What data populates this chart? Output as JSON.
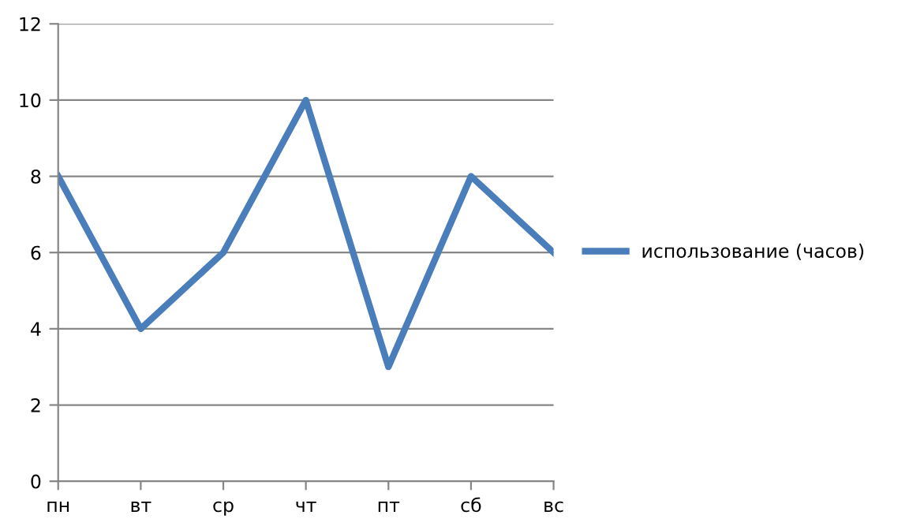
{
  "chart_data": {
    "type": "line",
    "categories": [
      "пн",
      "вт",
      "ср",
      "чт",
      "пт",
      "сб",
      "вс"
    ],
    "series": [
      {
        "name": "использование (часов)",
        "color": "#4a7ebb",
        "values": [
          8,
          4,
          6,
          10,
          3,
          8,
          6
        ]
      }
    ],
    "ylim": [
      0,
      12
    ],
    "yticks": [
      0,
      2,
      4,
      6,
      8,
      10,
      12
    ],
    "grid": "y",
    "legend": "right",
    "marker": "none",
    "line_style": "solid"
  }
}
